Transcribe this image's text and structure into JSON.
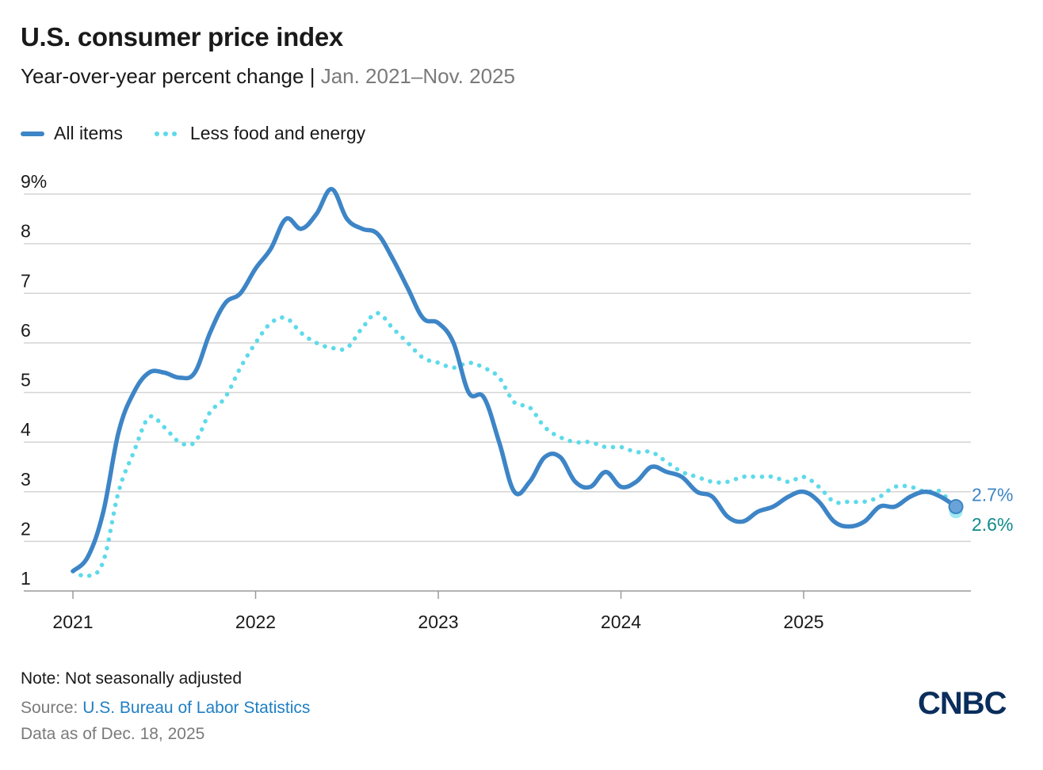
{
  "header": {
    "title": "U.S. consumer price index",
    "subtitle": "Year-over-year percent change",
    "separator": " | ",
    "range": "Jan. 2021–Nov. 2025"
  },
  "legend": {
    "all_items": "All items",
    "core": "Less food and energy"
  },
  "footer": {
    "note": "Note: Not seasonally adjusted",
    "source_prefix": "Source: ",
    "source_name": "U.S. Bureau of Labor Statistics",
    "as_of": "Data as of Dec. 18, 2025",
    "logo": "CNBC"
  },
  "colors": {
    "all_items": "#3d85c6",
    "core": "#5ddaea",
    "core_label": "#0f8a8a",
    "grid": "#d4d4d4",
    "axis": "#9a9a9a"
  },
  "chart_data": {
    "type": "line",
    "x_start": "2021-01",
    "y_ticks": [
      "9%",
      "8",
      "7",
      "6",
      "5",
      "4",
      "3",
      "2",
      "1"
    ],
    "y_tick_values": [
      9,
      8,
      7,
      6,
      5,
      4,
      3,
      2,
      1
    ],
    "x_ticks": [
      "2021",
      "2022",
      "2023",
      "2024",
      "2025"
    ],
    "ylim": [
      1,
      9
    ],
    "end_labels": {
      "all_items": "2.7%",
      "core": "2.6%"
    },
    "series": [
      {
        "name": "All items",
        "values": [
          1.4,
          1.7,
          2.6,
          4.2,
          5.0,
          5.4,
          5.4,
          5.3,
          5.4,
          6.2,
          6.8,
          7.0,
          7.5,
          7.9,
          8.5,
          8.3,
          8.6,
          9.1,
          8.5,
          8.3,
          8.2,
          7.7,
          7.1,
          6.5,
          6.4,
          6.0,
          5.0,
          4.9,
          4.0,
          3.0,
          3.2,
          3.7,
          3.7,
          3.2,
          3.1,
          3.4,
          3.1,
          3.2,
          3.5,
          3.4,
          3.3,
          3.0,
          2.9,
          2.5,
          2.4,
          2.6,
          2.7,
          2.9,
          3.0,
          2.8,
          2.4,
          2.3,
          2.4,
          2.7,
          2.7,
          2.9,
          3.0,
          2.9,
          2.7
        ]
      },
      {
        "name": "Less food and energy",
        "values": [
          1.4,
          1.3,
          1.6,
          3.0,
          3.8,
          4.5,
          4.3,
          4.0,
          4.0,
          4.6,
          4.9,
          5.5,
          6.0,
          6.4,
          6.5,
          6.2,
          6.0,
          5.9,
          5.9,
          6.3,
          6.6,
          6.3,
          6.0,
          5.7,
          5.6,
          5.5,
          5.6,
          5.5,
          5.3,
          4.8,
          4.7,
          4.3,
          4.1,
          4.0,
          4.0,
          3.9,
          3.9,
          3.8,
          3.8,
          3.6,
          3.4,
          3.3,
          3.2,
          3.2,
          3.3,
          3.3,
          3.3,
          3.2,
          3.3,
          3.1,
          2.8,
          2.8,
          2.8,
          2.9,
          3.1,
          3.1,
          3.0,
          3.0,
          2.6
        ]
      }
    ]
  }
}
